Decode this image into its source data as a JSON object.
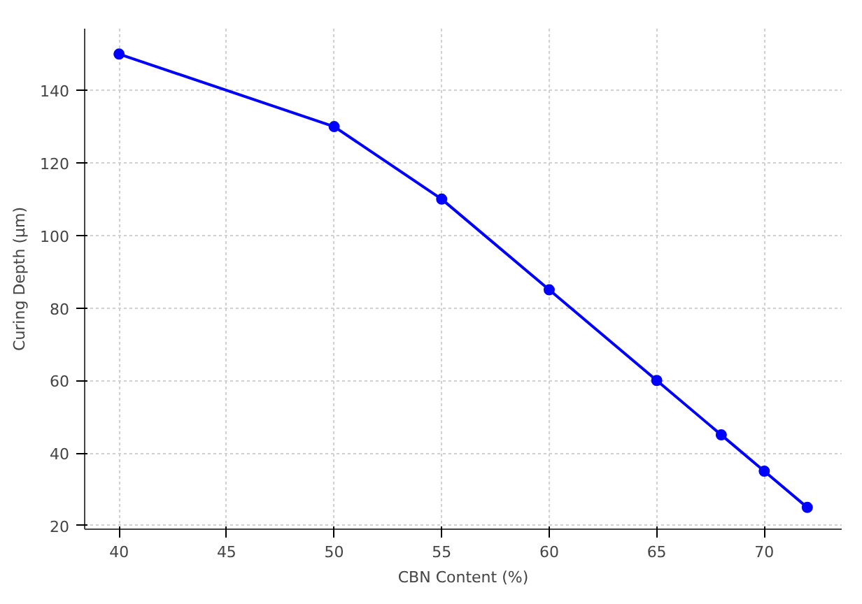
{
  "chart_data": {
    "type": "line",
    "xlabel": "CBN Content (%)",
    "ylabel": "Curing Depth (µm)",
    "x": [
      40,
      50,
      55,
      60,
      65,
      68,
      70,
      72
    ],
    "series": [
      {
        "color": "#0000ff",
        "values": [
          150,
          130,
          110,
          85,
          60,
          45,
          35,
          25
        ]
      }
    ],
    "xlim": [
      38.4,
      73.6
    ],
    "ylim": [
      19,
      157
    ],
    "xticks": [
      40,
      45,
      50,
      55,
      60,
      65,
      70
    ],
    "yticks": [
      20,
      40,
      60,
      80,
      100,
      120,
      140
    ],
    "grid": true,
    "marker": "circle",
    "line_style": "solid"
  }
}
